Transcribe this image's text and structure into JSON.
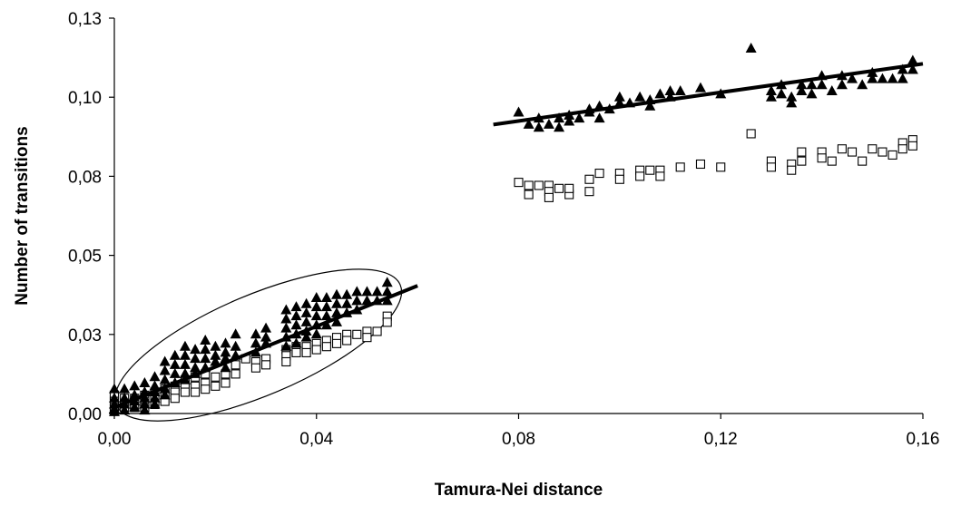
{
  "chart_data": {
    "type": "scatter",
    "xlabel": "Tamura-Nei distance",
    "ylabel": "Number of transitions",
    "xlim": [
      0,
      0.16
    ],
    "ylim": [
      0,
      0.13
    ],
    "x_ticks": [
      "0,00",
      "0,04",
      "0,08",
      "0,12",
      "0,16"
    ],
    "y_ticks": [
      "0,00",
      "0,03",
      "0,05",
      "0,08",
      "0,10",
      "0,13"
    ],
    "x_tick_values": [
      0,
      0.04,
      0.08,
      0.12,
      0.16
    ],
    "y_tick_values": [
      0,
      0.026,
      0.052,
      0.078,
      0.104,
      0.13
    ],
    "grid": false,
    "legend": "none",
    "trend_lines": [
      {
        "x": [
          0.0,
          0.06
        ],
        "y": [
          0.002,
          0.042
        ],
        "color": "#000000"
      },
      {
        "x": [
          0.075,
          0.16
        ],
        "y": [
          0.095,
          0.115
        ],
        "color": "#000000"
      }
    ],
    "ellipse": {
      "cx": 0.0285,
      "cy": 0.0225,
      "rx": 0.0305,
      "ry": 0.0165,
      "angle_deg": -23
    },
    "series": [
      {
        "marker": "triangle-filled",
        "color": "#000000",
        "points": [
          [
            0.0,
            0.008
          ],
          [
            0.0,
            0.005
          ],
          [
            0.0,
            0.003
          ],
          [
            0.0,
            0.0015
          ],
          [
            0.0,
            0.0005
          ],
          [
            0.002,
            0.008
          ],
          [
            0.002,
            0.005
          ],
          [
            0.002,
            0.003
          ],
          [
            0.002,
            0.001
          ],
          [
            0.004,
            0.009
          ],
          [
            0.004,
            0.006
          ],
          [
            0.004,
            0.004
          ],
          [
            0.004,
            0.002
          ],
          [
            0.006,
            0.01
          ],
          [
            0.006,
            0.007
          ],
          [
            0.006,
            0.005
          ],
          [
            0.006,
            0.003
          ],
          [
            0.006,
            0.001
          ],
          [
            0.008,
            0.012
          ],
          [
            0.008,
            0.009
          ],
          [
            0.008,
            0.007
          ],
          [
            0.008,
            0.005
          ],
          [
            0.008,
            0.003
          ],
          [
            0.01,
            0.017
          ],
          [
            0.01,
            0.014
          ],
          [
            0.01,
            0.011
          ],
          [
            0.01,
            0.008
          ],
          [
            0.01,
            0.006
          ],
          [
            0.012,
            0.019
          ],
          [
            0.012,
            0.016
          ],
          [
            0.012,
            0.013
          ],
          [
            0.012,
            0.01
          ],
          [
            0.014,
            0.022
          ],
          [
            0.014,
            0.019
          ],
          [
            0.014,
            0.016
          ],
          [
            0.014,
            0.013
          ],
          [
            0.014,
            0.011
          ],
          [
            0.016,
            0.021
          ],
          [
            0.016,
            0.018
          ],
          [
            0.016,
            0.015
          ],
          [
            0.016,
            0.013
          ],
          [
            0.018,
            0.024
          ],
          [
            0.018,
            0.021
          ],
          [
            0.018,
            0.018
          ],
          [
            0.018,
            0.015
          ],
          [
            0.02,
            0.022
          ],
          [
            0.02,
            0.019
          ],
          [
            0.02,
            0.017
          ],
          [
            0.022,
            0.023
          ],
          [
            0.022,
            0.02
          ],
          [
            0.022,
            0.018
          ],
          [
            0.022,
            0.015
          ],
          [
            0.024,
            0.026
          ],
          [
            0.024,
            0.022
          ],
          [
            0.024,
            0.019
          ],
          [
            0.028,
            0.026
          ],
          [
            0.028,
            0.023
          ],
          [
            0.028,
            0.02
          ],
          [
            0.03,
            0.028
          ],
          [
            0.03,
            0.025
          ],
          [
            0.03,
            0.023
          ],
          [
            0.034,
            0.034
          ],
          [
            0.034,
            0.031
          ],
          [
            0.034,
            0.028
          ],
          [
            0.034,
            0.025
          ],
          [
            0.034,
            0.022
          ],
          [
            0.036,
            0.035
          ],
          [
            0.036,
            0.032
          ],
          [
            0.036,
            0.029
          ],
          [
            0.036,
            0.026
          ],
          [
            0.036,
            0.023
          ],
          [
            0.038,
            0.036
          ],
          [
            0.038,
            0.033
          ],
          [
            0.038,
            0.03
          ],
          [
            0.038,
            0.027
          ],
          [
            0.038,
            0.025
          ],
          [
            0.04,
            0.038
          ],
          [
            0.04,
            0.035
          ],
          [
            0.04,
            0.032
          ],
          [
            0.04,
            0.029
          ],
          [
            0.04,
            0.026
          ],
          [
            0.042,
            0.038
          ],
          [
            0.042,
            0.035
          ],
          [
            0.042,
            0.032
          ],
          [
            0.042,
            0.029
          ],
          [
            0.044,
            0.039
          ],
          [
            0.044,
            0.036
          ],
          [
            0.044,
            0.033
          ],
          [
            0.044,
            0.03
          ],
          [
            0.046,
            0.039
          ],
          [
            0.046,
            0.036
          ],
          [
            0.046,
            0.033
          ],
          [
            0.048,
            0.04
          ],
          [
            0.048,
            0.037
          ],
          [
            0.048,
            0.034
          ],
          [
            0.05,
            0.04
          ],
          [
            0.05,
            0.037
          ],
          [
            0.052,
            0.04
          ],
          [
            0.052,
            0.037
          ],
          [
            0.054,
            0.043
          ],
          [
            0.054,
            0.04
          ],
          [
            0.054,
            0.037
          ],
          [
            0.08,
            0.099
          ],
          [
            0.082,
            0.095
          ],
          [
            0.084,
            0.097
          ],
          [
            0.084,
            0.094
          ],
          [
            0.086,
            0.095
          ],
          [
            0.088,
            0.097
          ],
          [
            0.088,
            0.094
          ],
          [
            0.09,
            0.098
          ],
          [
            0.09,
            0.096
          ],
          [
            0.092,
            0.097
          ],
          [
            0.094,
            0.1
          ],
          [
            0.094,
            0.099
          ],
          [
            0.096,
            0.101
          ],
          [
            0.096,
            0.097
          ],
          [
            0.098,
            0.1
          ],
          [
            0.1,
            0.104
          ],
          [
            0.1,
            0.102
          ],
          [
            0.102,
            0.102
          ],
          [
            0.104,
            0.104
          ],
          [
            0.106,
            0.103
          ],
          [
            0.106,
            0.101
          ],
          [
            0.108,
            0.105
          ],
          [
            0.11,
            0.106
          ],
          [
            0.11,
            0.104
          ],
          [
            0.112,
            0.106
          ],
          [
            0.116,
            0.107
          ],
          [
            0.12,
            0.105
          ],
          [
            0.126,
            0.12
          ],
          [
            0.13,
            0.106
          ],
          [
            0.13,
            0.104
          ],
          [
            0.132,
            0.108
          ],
          [
            0.132,
            0.105
          ],
          [
            0.134,
            0.102
          ],
          [
            0.134,
            0.104
          ],
          [
            0.136,
            0.108
          ],
          [
            0.136,
            0.106
          ],
          [
            0.138,
            0.108
          ],
          [
            0.138,
            0.105
          ],
          [
            0.14,
            0.111
          ],
          [
            0.14,
            0.108
          ],
          [
            0.142,
            0.106
          ],
          [
            0.144,
            0.111
          ],
          [
            0.144,
            0.108
          ],
          [
            0.146,
            0.11
          ],
          [
            0.148,
            0.108
          ],
          [
            0.15,
            0.112
          ],
          [
            0.15,
            0.11
          ],
          [
            0.152,
            0.11
          ],
          [
            0.154,
            0.11
          ],
          [
            0.156,
            0.113
          ],
          [
            0.156,
            0.11
          ],
          [
            0.158,
            0.116
          ],
          [
            0.158,
            0.113
          ]
        ]
      },
      {
        "marker": "square-open",
        "color": "#000000",
        "points": [
          [
            0.0,
            0.006
          ],
          [
            0.0,
            0.004
          ],
          [
            0.0,
            0.002
          ],
          [
            0.002,
            0.005
          ],
          [
            0.002,
            0.003
          ],
          [
            0.002,
            0.002
          ],
          [
            0.004,
            0.005
          ],
          [
            0.004,
            0.003
          ],
          [
            0.004,
            0.002
          ],
          [
            0.006,
            0.006
          ],
          [
            0.006,
            0.004
          ],
          [
            0.006,
            0.002
          ],
          [
            0.008,
            0.007
          ],
          [
            0.008,
            0.005
          ],
          [
            0.008,
            0.003
          ],
          [
            0.01,
            0.008
          ],
          [
            0.01,
            0.006
          ],
          [
            0.01,
            0.004
          ],
          [
            0.012,
            0.009
          ],
          [
            0.012,
            0.007
          ],
          [
            0.012,
            0.005
          ],
          [
            0.014,
            0.011
          ],
          [
            0.014,
            0.009
          ],
          [
            0.014,
            0.007
          ],
          [
            0.016,
            0.012
          ],
          [
            0.016,
            0.009
          ],
          [
            0.016,
            0.007
          ],
          [
            0.018,
            0.013
          ],
          [
            0.018,
            0.01
          ],
          [
            0.018,
            0.008
          ],
          [
            0.02,
            0.012
          ],
          [
            0.02,
            0.009
          ],
          [
            0.022,
            0.013
          ],
          [
            0.022,
            0.01
          ],
          [
            0.024,
            0.016
          ],
          [
            0.024,
            0.013
          ],
          [
            0.026,
            0.018
          ],
          [
            0.028,
            0.017
          ],
          [
            0.028,
            0.015
          ],
          [
            0.03,
            0.018
          ],
          [
            0.03,
            0.016
          ],
          [
            0.034,
            0.021
          ],
          [
            0.034,
            0.019
          ],
          [
            0.034,
            0.017
          ],
          [
            0.036,
            0.022
          ],
          [
            0.036,
            0.02
          ],
          [
            0.038,
            0.022
          ],
          [
            0.038,
            0.02
          ],
          [
            0.04,
            0.023
          ],
          [
            0.04,
            0.021
          ],
          [
            0.042,
            0.024
          ],
          [
            0.042,
            0.022
          ],
          [
            0.044,
            0.025
          ],
          [
            0.044,
            0.023
          ],
          [
            0.046,
            0.026
          ],
          [
            0.046,
            0.024
          ],
          [
            0.048,
            0.026
          ],
          [
            0.05,
            0.027
          ],
          [
            0.05,
            0.025
          ],
          [
            0.052,
            0.027
          ],
          [
            0.054,
            0.032
          ],
          [
            0.054,
            0.03
          ],
          [
            0.08,
            0.076
          ],
          [
            0.082,
            0.075
          ],
          [
            0.082,
            0.072
          ],
          [
            0.084,
            0.075
          ],
          [
            0.086,
            0.075
          ],
          [
            0.086,
            0.073
          ],
          [
            0.086,
            0.071
          ],
          [
            0.088,
            0.074
          ],
          [
            0.09,
            0.072
          ],
          [
            0.09,
            0.074
          ],
          [
            0.094,
            0.073
          ],
          [
            0.094,
            0.077
          ],
          [
            0.096,
            0.079
          ],
          [
            0.1,
            0.079
          ],
          [
            0.1,
            0.077
          ],
          [
            0.104,
            0.08
          ],
          [
            0.104,
            0.078
          ],
          [
            0.106,
            0.08
          ],
          [
            0.108,
            0.08
          ],
          [
            0.108,
            0.078
          ],
          [
            0.112,
            0.081
          ],
          [
            0.116,
            0.082
          ],
          [
            0.12,
            0.081
          ],
          [
            0.126,
            0.092
          ],
          [
            0.13,
            0.083
          ],
          [
            0.13,
            0.081
          ],
          [
            0.134,
            0.082
          ],
          [
            0.134,
            0.08
          ],
          [
            0.136,
            0.086
          ],
          [
            0.136,
            0.083
          ],
          [
            0.14,
            0.086
          ],
          [
            0.14,
            0.084
          ],
          [
            0.142,
            0.083
          ],
          [
            0.144,
            0.087
          ],
          [
            0.146,
            0.086
          ],
          [
            0.148,
            0.083
          ],
          [
            0.15,
            0.087
          ],
          [
            0.152,
            0.086
          ],
          [
            0.154,
            0.085
          ],
          [
            0.156,
            0.089
          ],
          [
            0.156,
            0.087
          ],
          [
            0.158,
            0.09
          ],
          [
            0.158,
            0.088
          ]
        ]
      }
    ]
  }
}
